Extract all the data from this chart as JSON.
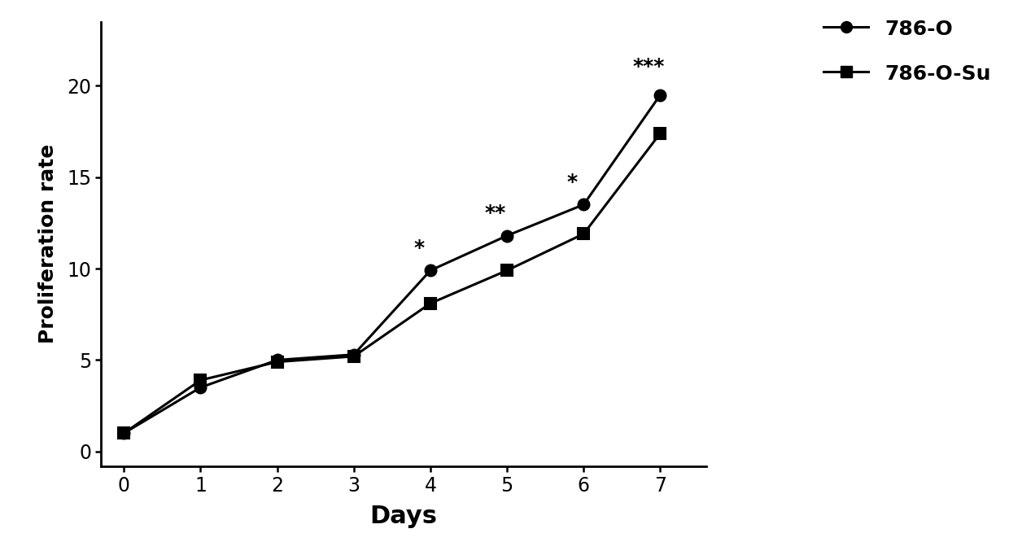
{
  "days": [
    0,
    1,
    2,
    3,
    4,
    5,
    6,
    7
  ],
  "series_786O": [
    1.0,
    3.5,
    5.0,
    5.3,
    9.9,
    11.8,
    13.5,
    19.5
  ],
  "series_786OSu": [
    1.0,
    3.9,
    4.9,
    5.2,
    8.1,
    9.9,
    11.9,
    17.4
  ],
  "line_color": "#000000",
  "marker_786O": "o",
  "marker_786OSu": "s",
  "label_786O": "786-O",
  "label_786OSu": "786-O-Su",
  "xlabel": "Days",
  "ylabel": "Proliferation rate",
  "xlim": [
    -0.3,
    7.6
  ],
  "ylim": [
    -0.8,
    23.5
  ],
  "xticks": [
    0,
    1,
    2,
    3,
    4,
    5,
    6,
    7
  ],
  "yticks": [
    0,
    5,
    10,
    15,
    20
  ],
  "significance": {
    "4": "*",
    "5": "**",
    "6": "*",
    "7": "***"
  },
  "sig_x_offsets": {
    "4": -0.15,
    "5": -0.15,
    "6": -0.15,
    "7": -0.15
  },
  "sig_positions": {
    "4": 10.6,
    "5": 12.5,
    "6": 14.2,
    "7": 20.5
  },
  "background_color": "#ffffff",
  "linewidth": 2.2,
  "markersize": 10,
  "error_bar_capsize": 3,
  "error_786O": [
    0.05,
    0.12,
    0.12,
    0.1,
    0.18,
    0.15,
    0.15,
    0.2
  ],
  "error_786OSu": [
    0.05,
    0.12,
    0.1,
    0.1,
    0.18,
    0.15,
    0.15,
    0.2
  ],
  "font_size_xlabel": 22,
  "font_size_ylabel": 18,
  "font_size_ticks": 17,
  "font_size_legend": 18,
  "font_size_sig": 18,
  "spine_linewidth": 2.0
}
